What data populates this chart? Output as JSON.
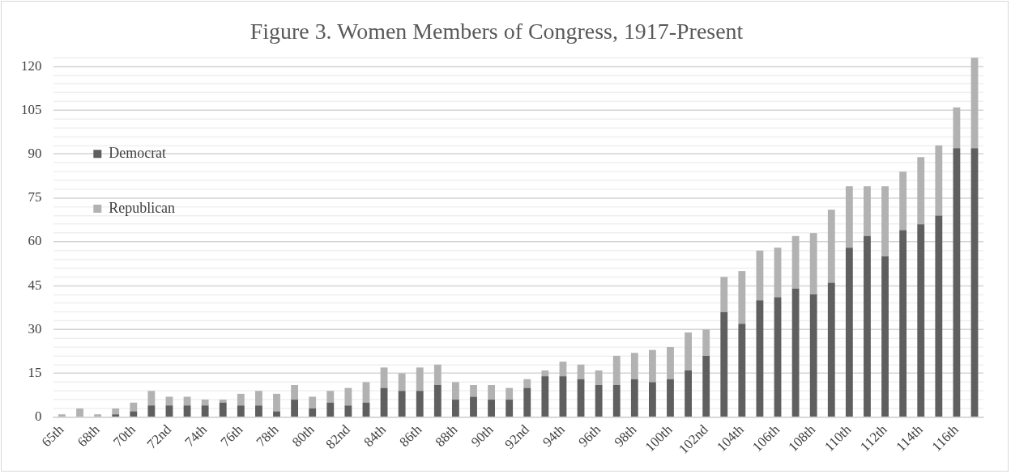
{
  "chart_data": {
    "type": "bar",
    "title": "Figure 3. Women Members of Congress, 1917-Present",
    "stacked": true,
    "legend": "top",
    "grid": "y",
    "categories": [
      "65th",
      null,
      "68th",
      null,
      "70th",
      null,
      "72nd",
      null,
      "74th",
      null,
      "76th",
      null,
      "78th",
      null,
      "80th",
      null,
      "82nd",
      null,
      "84th",
      null,
      "86th",
      null,
      "88th",
      null,
      "90th",
      null,
      "92nd",
      null,
      "94th",
      null,
      "96th",
      null,
      "98th",
      null,
      "100th",
      null,
      "102nd",
      null,
      "104th",
      null,
      "106th",
      null,
      "108th",
      null,
      "110th",
      null,
      "112th",
      null,
      "114th",
      null,
      "116th",
      null
    ],
    "series": [
      {
        "name": "Democrat",
        "color": "#5f5f5f",
        "values": [
          0,
          0,
          0,
          1,
          2,
          4,
          4,
          4,
          4,
          5,
          4,
          4,
          2,
          6,
          3,
          5,
          4,
          5,
          10,
          9,
          9,
          11,
          6,
          7,
          6,
          6,
          10,
          14,
          14,
          13,
          11,
          11,
          13,
          12,
          13,
          16,
          21,
          36,
          32,
          40,
          41,
          44,
          42,
          46,
          58,
          62,
          55,
          64,
          66,
          69,
          92,
          92
        ]
      },
      {
        "name": "Republican",
        "color": "#b2b2b2",
        "values": [
          1,
          3,
          1,
          2,
          3,
          5,
          3,
          3,
          2,
          1,
          4,
          5,
          6,
          5,
          4,
          4,
          6,
          7,
          7,
          6,
          8,
          7,
          6,
          4,
          5,
          4,
          3,
          2,
          5,
          5,
          5,
          10,
          9,
          11,
          11,
          13,
          9,
          12,
          18,
          17,
          17,
          18,
          21,
          25,
          21,
          17,
          24,
          20,
          23,
          24,
          14,
          31
        ]
      }
    ],
    "ylim": [
      0,
      123
    ],
    "yticks": [
      0,
      {
        "value": 3,
        "label": null
      },
      {
        "value": 6,
        "label": null
      },
      {
        "value": 9,
        "label": null
      },
      {
        "value": 12,
        "label": null
      },
      15,
      {
        "value": 18,
        "label": null
      },
      {
        "value": 21,
        "label": null
      },
      {
        "value": 24,
        "label": null
      },
      {
        "value": 27,
        "label": null
      },
      30,
      {
        "value": 33,
        "label": null
      },
      {
        "value": 36,
        "label": null
      },
      {
        "value": 39,
        "label": null
      },
      {
        "value": 42,
        "label": null
      },
      45,
      {
        "value": 48,
        "label": null
      },
      {
        "value": 51,
        "label": null
      },
      {
        "value": 54,
        "label": null
      },
      {
        "value": 57,
        "label": null
      },
      60,
      {
        "value": 63,
        "label": null
      },
      {
        "value": 66,
        "label": null
      },
      {
        "value": 69,
        "label": null
      },
      {
        "value": 72,
        "label": null
      },
      75,
      {
        "value": 78,
        "label": null
      },
      {
        "value": 81,
        "label": null
      },
      {
        "value": 84,
        "label": null
      },
      {
        "value": 87,
        "label": null
      },
      90,
      {
        "value": 93,
        "label": null
      },
      {
        "value": 96,
        "label": null
      },
      {
        "value": 99,
        "label": null
      },
      {
        "value": 102,
        "label": null
      },
      105,
      {
        "value": 108,
        "label": null
      },
      {
        "value": 111,
        "label": null
      },
      {
        "value": 114,
        "label": null
      },
      {
        "value": 117,
        "label": null
      },
      120,
      {
        "value": 123,
        "label": null
      }
    ]
  }
}
